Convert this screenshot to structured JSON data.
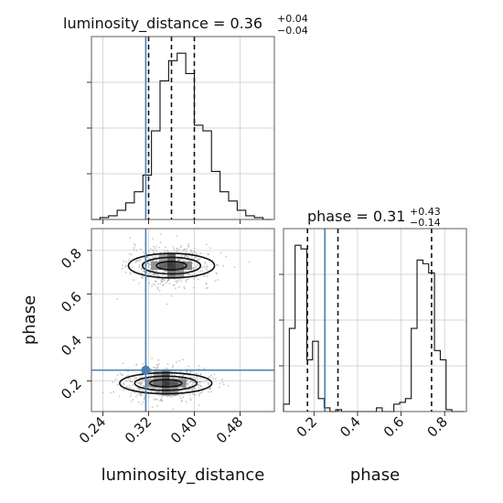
{
  "chart_data": {
    "type": "corner",
    "truth_color": "#4a7fb0",
    "parameters": [
      "luminosity_distance",
      "phase"
    ],
    "axis_labels": {
      "x_left": "luminosity_distance",
      "x_right": "phase",
      "y_bottom_left": "phase"
    },
    "titles": {
      "luminosity_distance": {
        "prefix": "luminosity_distance = ",
        "median": "0.36",
        "plus": "+0.04",
        "minus": "−0.04"
      },
      "phase": {
        "prefix": "phase = ",
        "median": "0.31",
        "plus": "+0.43",
        "minus": "−0.14"
      }
    },
    "ranges": {
      "luminosity_distance": [
        0.22,
        0.54
      ],
      "phase": [
        0.06,
        0.9
      ]
    },
    "ticks": {
      "luminosity_distance": {
        "values": [
          0.24,
          0.32,
          0.4,
          0.48
        ],
        "labels": [
          "0.24",
          "0.32",
          "0.40",
          "0.48"
        ]
      },
      "phase": {
        "values": [
          0.2,
          0.4,
          0.6,
          0.8
        ],
        "labels": [
          "0.2",
          "0.4",
          "0.6",
          "0.8"
        ]
      }
    },
    "truths": {
      "luminosity_distance": 0.315,
      "phase": 0.25
    },
    "quantiles": {
      "luminosity_distance": [
        0.32,
        0.36,
        0.4
      ],
      "phase": [
        0.17,
        0.31,
        0.74
      ]
    },
    "hist_luminosity_distance": {
      "bin_edges": [
        0.22,
        0.235,
        0.25,
        0.265,
        0.28,
        0.295,
        0.31,
        0.325,
        0.34,
        0.355,
        0.37,
        0.385,
        0.4,
        0.415,
        0.43,
        0.445,
        0.46,
        0.475,
        0.49,
        0.505,
        0.52,
        0.535
      ],
      "counts": [
        0,
        1,
        2,
        5,
        9,
        15,
        24,
        48,
        75,
        86,
        90,
        79,
        51,
        48,
        26,
        15,
        10,
        5,
        2,
        1,
        0
      ]
    },
    "hist_phase": {
      "bin_edges": [
        0.06,
        0.0867,
        0.1133,
        0.14,
        0.1667,
        0.1933,
        0.22,
        0.2467,
        0.2733,
        0.3,
        0.3267,
        0.3533,
        0.38,
        0.4067,
        0.4333,
        0.46,
        0.4867,
        0.5133,
        0.54,
        0.5667,
        0.5933,
        0.62,
        0.6467,
        0.6733,
        0.7,
        0.7267,
        0.7533,
        0.78,
        0.8067,
        0.8333,
        0.86,
        0.8867
      ],
      "counts": [
        4,
        45,
        90,
        88,
        28,
        38,
        7,
        2,
        0,
        1,
        0,
        0,
        0,
        0,
        0,
        0,
        2,
        0,
        0,
        4,
        5,
        7,
        45,
        82,
        80,
        75,
        33,
        28,
        1,
        0,
        0
      ]
    },
    "density_2d": {
      "modes": [
        {
          "x": 0.36,
          "y": 0.73,
          "sx": 0.028,
          "sy": 0.035
        },
        {
          "x": 0.35,
          "y": 0.19,
          "sx": 0.03,
          "sy": 0.03
        }
      ]
    }
  }
}
